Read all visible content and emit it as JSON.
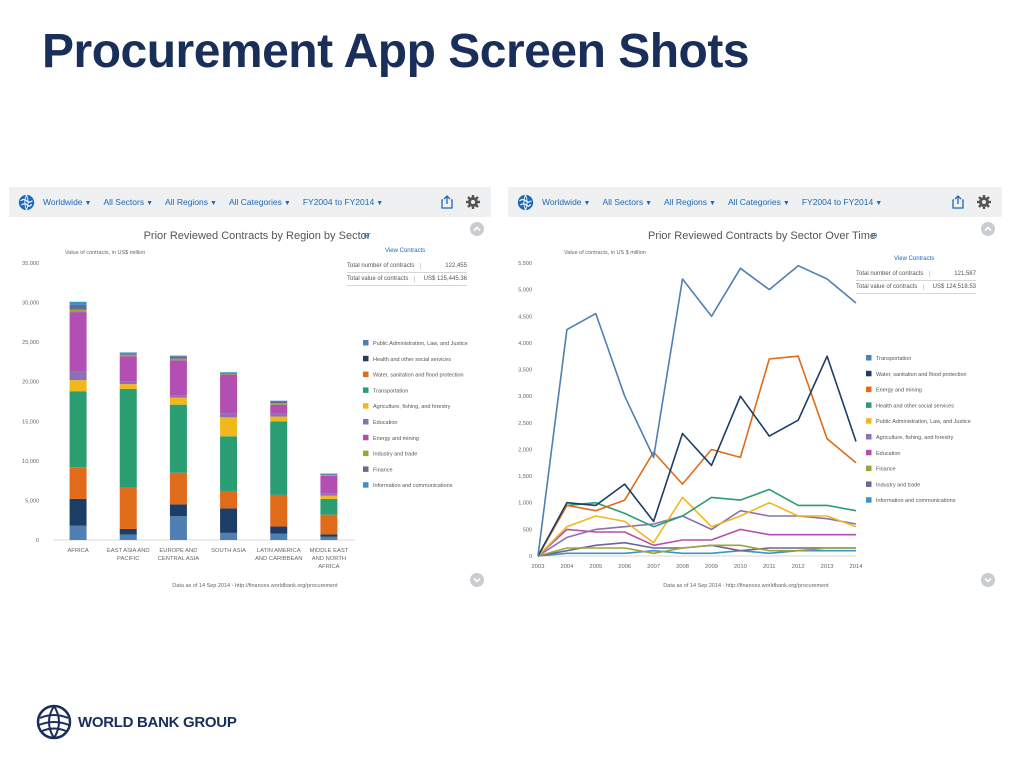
{
  "page_title": "Procurement App Screen Shots",
  "brand": {
    "wordmark": "WORLD BANK GROUP",
    "color": "#1a2e5a"
  },
  "toolbar": {
    "items": [
      "Worldwide",
      "All Sectors",
      "All Regions",
      "All Categories",
      "FY2004 to FY2014"
    ],
    "caret": "▼",
    "icons": [
      "globe-icon",
      "share-icon",
      "gear-icon"
    ]
  },
  "left_panel": {
    "title": "Prior Reviewed Contracts by Region by Sector",
    "title_icon": "⊖",
    "y_caption": "Value of contracts, in US$ million",
    "view_contracts": "View Contracts",
    "summary": [
      {
        "label": "Total number of contracts",
        "value": "122,455"
      },
      {
        "label": "Total value of contracts",
        "value": "US$ 125,445.36"
      }
    ],
    "footer": "Data as of 14 Sep 2014 - http://finances.worldbank.org/procurement"
  },
  "right_panel": {
    "title": "Prior Reviewed Contracts by Sector Over Time",
    "title_icon": "⊖",
    "y_caption": "Value of contracts, in US $ million",
    "view_contracts": "View Contracts",
    "summary": [
      {
        "label": "Total number of contracts",
        "value": "121,587"
      },
      {
        "label": "Total value of contracts",
        "value": "US$ 124,518.53"
      }
    ],
    "footer": "Data as of 14 Sep 2014 - http://finances.worldbank.org/procurement"
  },
  "chart_data": [
    {
      "type": "bar",
      "stacked": true,
      "title": "Prior Reviewed Contracts by Region by Sector",
      "ylabel": "Value of contracts, in US$ million",
      "ylim": [
        0,
        35000
      ],
      "yticks": [
        "0",
        "5,000",
        "10,000",
        "15,000",
        "20,000",
        "25,000",
        "30,000",
        "35,000"
      ],
      "grid": false,
      "legend_position": "right",
      "categories": [
        [
          "AFRICA"
        ],
        [
          "EAST ASIA AND",
          "PACIFIC"
        ],
        [
          "EUROPE AND",
          "CENTRAL ASIA"
        ],
        [
          "SOUTH ASIA"
        ],
        [
          "LATIN AMERICA",
          "AND CARIBBEAN"
        ],
        [
          "MIDDLE EAST",
          "AND NORTH",
          "AFRICA"
        ]
      ],
      "series": [
        {
          "name": "Public Administration, Law, and Justice",
          "color": "#4f7fb3",
          "values": [
            1800,
            700,
            3000,
            900,
            800,
            400
          ]
        },
        {
          "name": "Health and other social services",
          "color": "#1b3d66",
          "values": [
            3400,
            700,
            1500,
            3100,
            900,
            300
          ]
        },
        {
          "name": "Water, sanitation and flood protection",
          "color": "#e06b1a",
          "values": [
            4000,
            5200,
            4000,
            2200,
            4000,
            2500
          ]
        },
        {
          "name": "Transportation",
          "color": "#2a9d73",
          "values": [
            9600,
            12500,
            8600,
            6900,
            9300,
            2000
          ]
        },
        {
          "name": "Agriculture, fishing, and forestry",
          "color": "#f0b81c",
          "values": [
            1400,
            600,
            900,
            2400,
            600,
            400
          ]
        },
        {
          "name": "Education",
          "color": "#8b6fb8",
          "values": [
            1100,
            300,
            300,
            500,
            400,
            300
          ]
        },
        {
          "name": "Energy and mining",
          "color": "#b34fb3",
          "values": [
            7500,
            3200,
            4400,
            4900,
            1100,
            2200
          ]
        },
        {
          "name": "Industry and trade",
          "color": "#9aa63a",
          "values": [
            300,
            200,
            200,
            100,
            200,
            100
          ]
        },
        {
          "name": "Finance",
          "color": "#6d6694",
          "values": [
            600,
            200,
            300,
            100,
            200,
            100
          ]
        },
        {
          "name": "Information and communications",
          "color": "#3a95c5",
          "values": [
            400,
            100,
            100,
            100,
            100,
            100
          ]
        }
      ]
    },
    {
      "type": "line",
      "title": "Prior Reviewed Contracts by Sector Over Time",
      "ylabel": "Value of contracts, in US $ million",
      "ylim": [
        0,
        5500
      ],
      "yticks": [
        "0",
        "500",
        "1,000",
        "1,500",
        "2,000",
        "2,500",
        "3,000",
        "3,500",
        "4,000",
        "4,500",
        "5,000",
        "5,500"
      ],
      "x": [
        "2003",
        "2004",
        "2005",
        "2006",
        "2007",
        "2008",
        "2009",
        "2010",
        "2011",
        "2012",
        "2013",
        "2014"
      ],
      "grid": false,
      "legend_position": "right",
      "series": [
        {
          "name": "Transportation",
          "color": "#4f7fb3",
          "values": [
            0,
            4250,
            4550,
            3000,
            1850,
            5200,
            4500,
            5400,
            5000,
            5450,
            5200,
            4750
          ]
        },
        {
          "name": "Water, sanitation and flood protection",
          "color": "#1b3d66",
          "values": [
            0,
            1000,
            950,
            1350,
            650,
            2300,
            1700,
            3000,
            2250,
            2550,
            3750,
            2150
          ]
        },
        {
          "name": "Energy and mining",
          "color": "#e06b1a",
          "values": [
            0,
            950,
            850,
            1050,
            1950,
            1350,
            2000,
            1850,
            3700,
            3750,
            2200,
            1750
          ]
        },
        {
          "name": "Health and other social services",
          "color": "#2a9d73",
          "values": [
            0,
            950,
            1000,
            800,
            550,
            750,
            1100,
            1050,
            1250,
            950,
            950,
            850
          ]
        },
        {
          "name": "Public Administration, Law, and Justice",
          "color": "#f0b81c",
          "values": [
            0,
            550,
            750,
            650,
            250,
            1100,
            550,
            750,
            1000,
            750,
            750,
            550
          ]
        },
        {
          "name": "Agriculture, fishing, and forestry",
          "color": "#8b6fb8",
          "values": [
            0,
            350,
            500,
            550,
            600,
            750,
            500,
            850,
            750,
            750,
            700,
            600
          ]
        },
        {
          "name": "Education",
          "color": "#b34fb3",
          "values": [
            0,
            500,
            450,
            450,
            200,
            300,
            300,
            500,
            400,
            400,
            400,
            400
          ]
        },
        {
          "name": "Finance",
          "color": "#9aa63a",
          "values": [
            0,
            150,
            150,
            150,
            50,
            150,
            200,
            200,
            100,
            100,
            150,
            150
          ]
        },
        {
          "name": "Industry and trade",
          "color": "#6d6694",
          "values": [
            0,
            100,
            200,
            250,
            150,
            150,
            200,
            100,
            150,
            150,
            150,
            150
          ]
        },
        {
          "name": "Information and communications",
          "color": "#3a95c5",
          "values": [
            0,
            50,
            50,
            50,
            100,
            50,
            50,
            100,
            50,
            100,
            100,
            100
          ]
        }
      ]
    }
  ]
}
